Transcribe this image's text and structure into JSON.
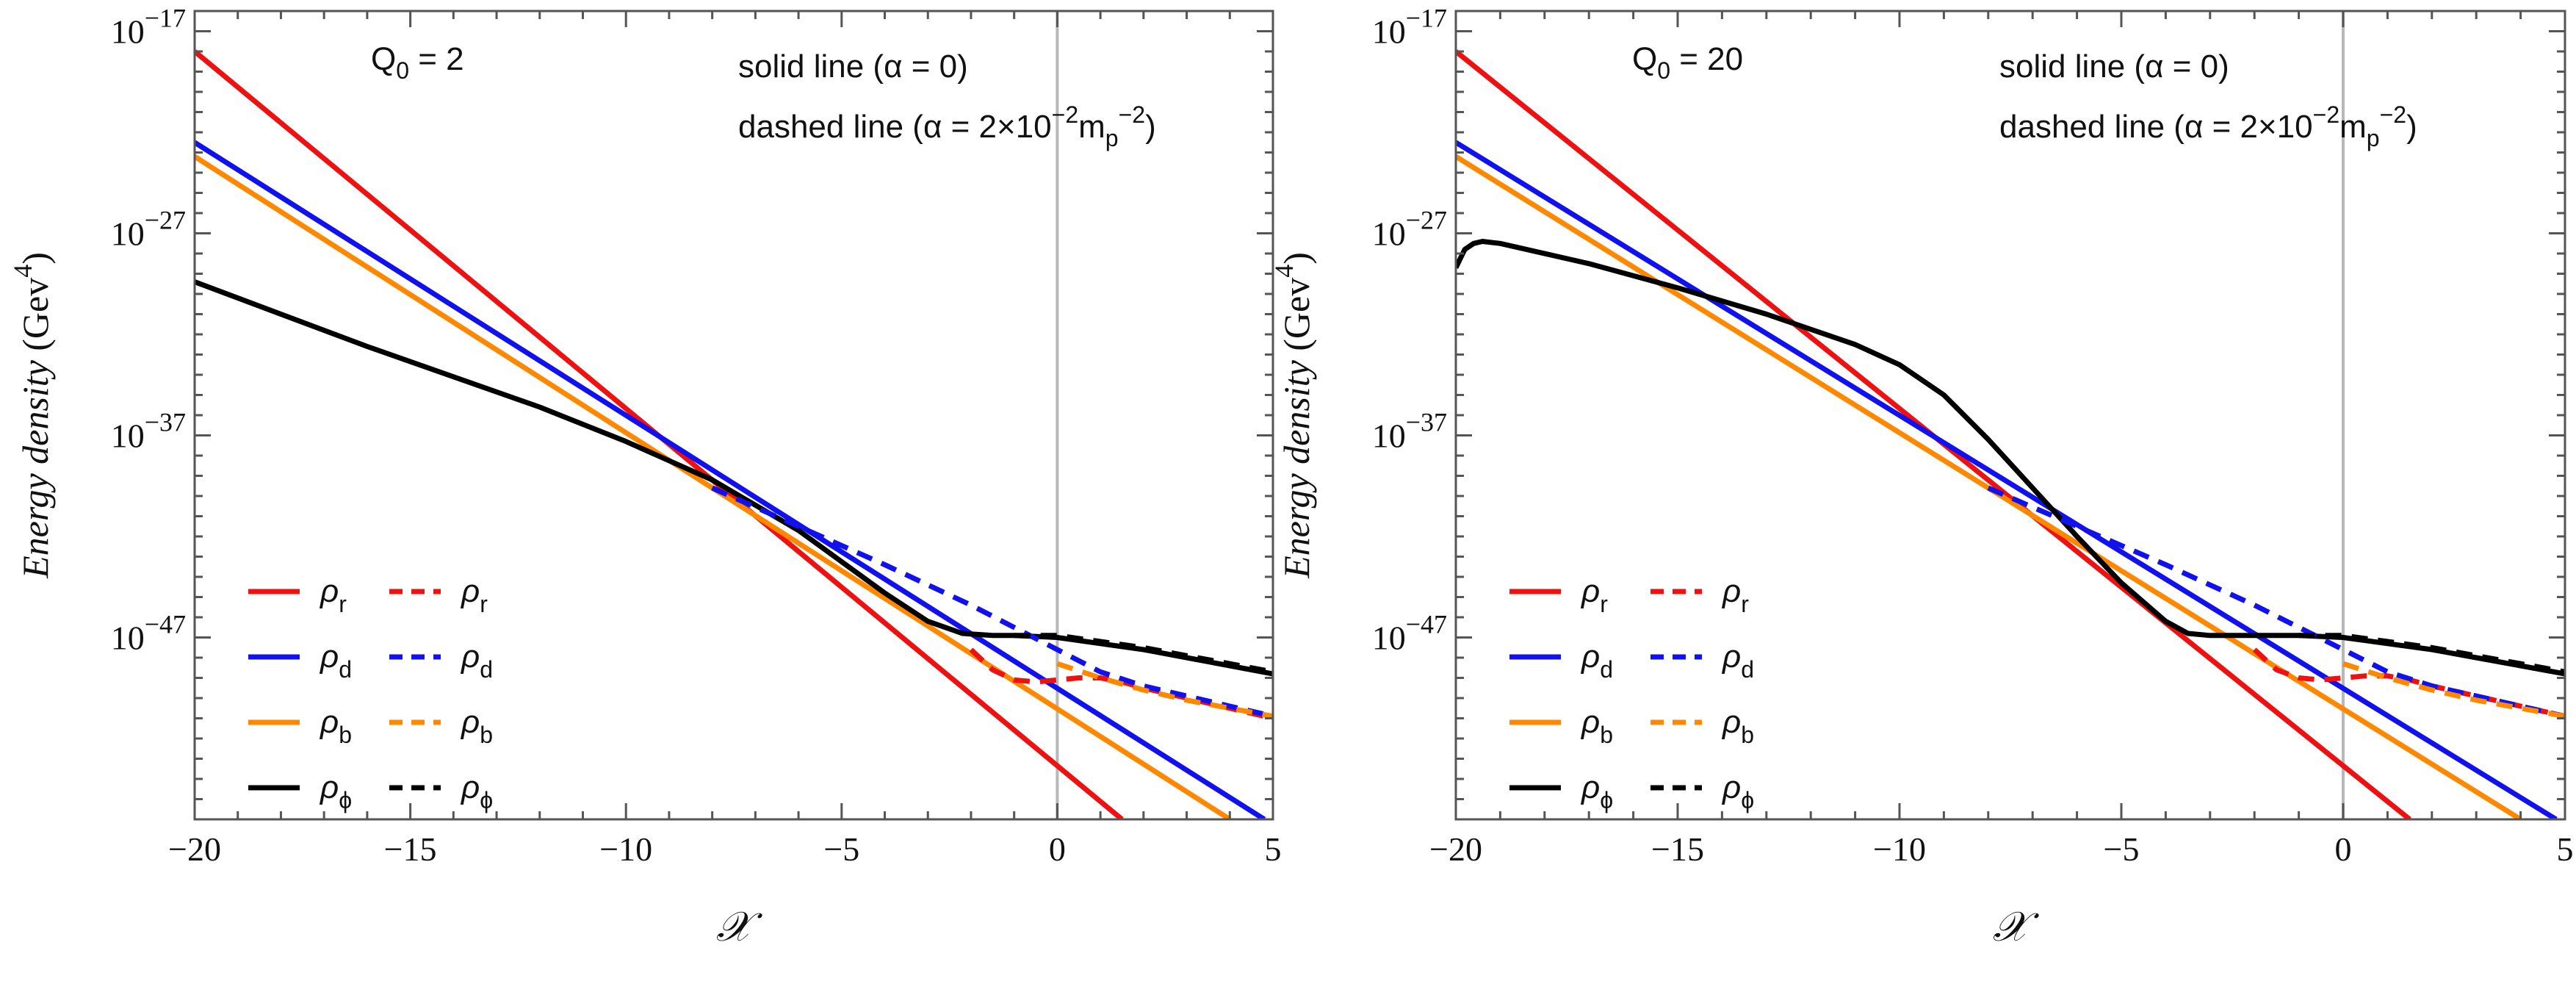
{
  "chart_data": [
    {
      "type": "line",
      "q_label": "Q",
      "q_sub": "0",
      "q_value": " = 2",
      "note_solid": "solid line (α = 0)",
      "note_dashed_pre": "dashed line (α = 2×10",
      "note_dashed_exp": "−2",
      "note_dashed_mid": "m",
      "note_dashed_sub": "p",
      "note_dashed_exp2": "−2",
      "note_dashed_post": ")",
      "xlabel": "𝒳",
      "ylabel": "Energy density",
      "ylabel_unit": "(Gev",
      "ylabel_unit_exp": "4",
      "ylabel_unit_close": ")",
      "xlim": [
        -20,
        5
      ],
      "ylim_log10": [
        -56,
        -16
      ],
      "x_ticks": [
        -20,
        -15,
        -10,
        -5,
        0,
        5
      ],
      "x_tick_labels": [
        "−20",
        "−15",
        "−10",
        "−5",
        "0",
        "5"
      ],
      "y_ticks": [
        {
          "base": "10",
          "exp": "−17",
          "value": -17
        },
        {
          "base": "10",
          "exp": "−27",
          "value": -27
        },
        {
          "base": "10",
          "exp": "−37",
          "value": -37
        },
        {
          "base": "10",
          "exp": "−47",
          "value": -47
        }
      ],
      "vline_x": 0,
      "series": [
        {
          "name": "ρr solid",
          "color": "#ee1111",
          "dash": false,
          "x": [
            -20,
            1.5
          ],
          "log10_y": [
            -18.0,
            -56.0
          ]
        },
        {
          "name": "ρd solid",
          "color": "#1111ee",
          "dash": false,
          "x": [
            -20,
            4.8
          ],
          "log10_y": [
            -22.5,
            -56.0
          ]
        },
        {
          "name": "ρb solid",
          "color": "#ff8800",
          "dash": false,
          "x": [
            -20,
            4.0
          ],
          "log10_y": [
            -23.2,
            -56.0
          ]
        },
        {
          "name": "ρφ solid",
          "color": "#000000",
          "dash": false,
          "x": [
            -20,
            -16,
            -12,
            -10,
            -8,
            -6,
            -4,
            -3,
            -2.2,
            -1.5,
            -1,
            0,
            1,
            2,
            3,
            4,
            5
          ],
          "log10_y": [
            -29.4,
            -32.6,
            -35.6,
            -37.3,
            -39.2,
            -41.7,
            -44.8,
            -46.2,
            -46.8,
            -46.9,
            -46.9,
            -47.0,
            -47.3,
            -47.6,
            -48.0,
            -48.4,
            -48.8
          ]
        },
        {
          "name": "ρr dashed",
          "color": "#ee1111",
          "dash": true,
          "x": [
            -2.0,
            -1.5,
            -1.0,
            -0.5,
            0,
            0.5,
            1,
            1.5,
            2,
            3,
            4,
            5
          ],
          "log10_y": [
            -47.6,
            -48.6,
            -49.1,
            -49.2,
            -49.1,
            -49.0,
            -49.0,
            -49.2,
            -49.5,
            -50.0,
            -50.5,
            -51.0
          ]
        },
        {
          "name": "ρd dashed",
          "color": "#1111ee",
          "dash": true,
          "x": [
            -8,
            -6,
            -4,
            -2,
            -1,
            0,
            1,
            2,
            3,
            4,
            5
          ],
          "log10_y": [
            -39.6,
            -41.5,
            -43.4,
            -45.4,
            -46.5,
            -47.6,
            -48.7,
            -49.4,
            -49.9,
            -50.4,
            -50.9
          ]
        },
        {
          "name": "ρb dashed",
          "color": "#ff8800",
          "dash": true,
          "x": [
            0,
            1,
            2,
            3,
            4,
            5
          ],
          "log10_y": [
            -48.3,
            -49.0,
            -49.6,
            -50.1,
            -50.5,
            -50.9
          ]
        },
        {
          "name": "ρφ dashed",
          "color": "#000000",
          "dash": true,
          "x": [
            -1,
            0,
            1,
            2,
            3,
            4,
            5
          ],
          "log10_y": [
            -46.9,
            -46.9,
            -47.2,
            -47.5,
            -47.9,
            -48.3,
            -48.7
          ]
        }
      ],
      "legend": [
        {
          "symbol": "ρ",
          "sub": "r",
          "color": "#ee1111"
        },
        {
          "symbol": "ρ",
          "sub": "d",
          "color": "#1111ee"
        },
        {
          "symbol": "ρ",
          "sub": "b",
          "color": "#ff8800"
        },
        {
          "symbol": "ρ",
          "sub": "ϕ",
          "color": "#000000"
        }
      ]
    },
    {
      "type": "line",
      "q_label": "Q",
      "q_sub": "0",
      "q_value": " = 20",
      "note_solid": "solid line (α = 0)",
      "note_dashed_pre": "dashed line (α = 2×10",
      "note_dashed_exp": "−2",
      "note_dashed_mid": "m",
      "note_dashed_sub": "p",
      "note_dashed_exp2": "−2",
      "note_dashed_post": ")",
      "xlabel": "𝒳",
      "ylabel": "Energy density",
      "ylabel_unit": "(Gev",
      "ylabel_unit_exp": "4",
      "ylabel_unit_close": ")",
      "xlim": [
        -20,
        5
      ],
      "ylim_log10": [
        -56,
        -16
      ],
      "x_ticks": [
        -20,
        -15,
        -10,
        -5,
        0,
        5
      ],
      "x_tick_labels": [
        "−20",
        "−15",
        "−10",
        "−5",
        "0",
        "5"
      ],
      "y_ticks": [
        {
          "base": "10",
          "exp": "−17",
          "value": -17
        },
        {
          "base": "10",
          "exp": "−27",
          "value": -27
        },
        {
          "base": "10",
          "exp": "−37",
          "value": -37
        },
        {
          "base": "10",
          "exp": "−47",
          "value": -47
        }
      ],
      "vline_x": 0,
      "series": [
        {
          "name": "ρr solid",
          "color": "#ee1111",
          "dash": false,
          "x": [
            -20,
            1.5
          ],
          "log10_y": [
            -18.0,
            -56.0
          ]
        },
        {
          "name": "ρd solid",
          "color": "#1111ee",
          "dash": false,
          "x": [
            -20,
            4.8
          ],
          "log10_y": [
            -22.5,
            -56.0
          ]
        },
        {
          "name": "ρb solid",
          "color": "#ff8800",
          "dash": false,
          "x": [
            -20,
            4.0
          ],
          "log10_y": [
            -23.2,
            -56.0
          ]
        },
        {
          "name": "ρφ solid",
          "color": "#000000",
          "dash": false,
          "x": [
            -20,
            -19.8,
            -19.6,
            -19.4,
            -19,
            -17,
            -15,
            -13,
            -11,
            -10,
            -9,
            -8,
            -6,
            -5,
            -4,
            -3.5,
            -3,
            -2,
            -1,
            0,
            1,
            2,
            3,
            4,
            5
          ],
          "log10_y": [
            -28.7,
            -27.8,
            -27.5,
            -27.4,
            -27.5,
            -28.5,
            -29.7,
            -31.0,
            -32.5,
            -33.5,
            -35.0,
            -37.2,
            -42.0,
            -44.3,
            -46.2,
            -46.8,
            -46.9,
            -46.9,
            -46.9,
            -47.0,
            -47.3,
            -47.6,
            -48.0,
            -48.4,
            -48.8
          ]
        },
        {
          "name": "ρr dashed",
          "color": "#ee1111",
          "dash": true,
          "x": [
            -2.0,
            -1.5,
            -1.0,
            -0.5,
            0,
            0.5,
            1,
            1.5,
            2,
            3,
            4,
            5
          ],
          "log10_y": [
            -47.6,
            -48.6,
            -49.0,
            -49.1,
            -49.0,
            -48.9,
            -48.9,
            -49.1,
            -49.4,
            -49.9,
            -50.4,
            -50.9
          ]
        },
        {
          "name": "ρd dashed",
          "color": "#1111ee",
          "dash": true,
          "x": [
            -8,
            -6,
            -4,
            -2,
            -1,
            0,
            1,
            2,
            3,
            4,
            5
          ],
          "log10_y": [
            -39.6,
            -41.5,
            -43.4,
            -45.4,
            -46.5,
            -47.6,
            -48.7,
            -49.4,
            -49.9,
            -50.4,
            -50.9
          ]
        },
        {
          "name": "ρb dashed",
          "color": "#ff8800",
          "dash": true,
          "x": [
            0,
            1,
            2,
            3,
            4,
            5
          ],
          "log10_y": [
            -48.3,
            -49.0,
            -49.6,
            -50.1,
            -50.5,
            -50.9
          ]
        },
        {
          "name": "ρφ dashed",
          "color": "#000000",
          "dash": true,
          "x": [
            -1,
            0,
            1,
            2,
            3,
            4,
            5
          ],
          "log10_y": [
            -46.9,
            -46.9,
            -47.2,
            -47.5,
            -47.9,
            -48.3,
            -48.7
          ]
        }
      ],
      "legend": [
        {
          "symbol": "ρ",
          "sub": "r",
          "color": "#ee1111"
        },
        {
          "symbol": "ρ",
          "sub": "d",
          "color": "#1111ee"
        },
        {
          "symbol": "ρ",
          "sub": "b",
          "color": "#ff8800"
        },
        {
          "symbol": "ρ",
          "sub": "ϕ",
          "color": "#000000"
        }
      ]
    }
  ]
}
